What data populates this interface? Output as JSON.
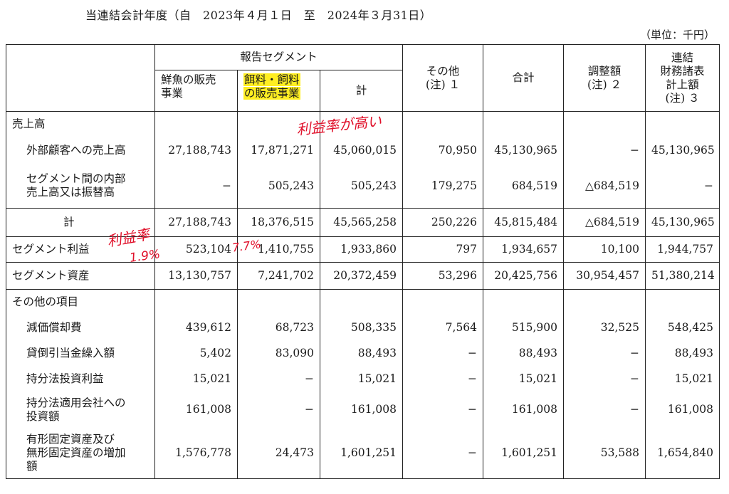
{
  "period": "当連結会計年度（自　2023年４月１日　至　2024年３月31日）",
  "unit": "（単位：千円）",
  "header": {
    "reporting_segment": "報告セグメント",
    "col_fish": [
      "鮮魚の販売",
      "事業"
    ],
    "col_feed": [
      "餌料・飼料",
      "の販売事業"
    ],
    "col_subtotal": "計",
    "col_other": [
      "その他",
      "(注) １"
    ],
    "col_total": "合計",
    "col_adjust": [
      "調整額",
      "(注) ２"
    ],
    "col_consol": [
      "連結",
      "財務諸表",
      "計上額",
      "(注) ３"
    ]
  },
  "rows": {
    "sales_heading": "売上高",
    "external": {
      "label": "外部顧客への売上高",
      "values": [
        "27,188,743",
        "17,871,271",
        "45,060,015",
        "70,950",
        "45,130,965",
        "−",
        "45,130,965"
      ]
    },
    "intersegment": {
      "label": [
        "セグメント間の内部",
        "売上高又は振替高"
      ],
      "values": [
        "−",
        "505,243",
        "505,243",
        "179,275",
        "684,519",
        "△684,519",
        "−"
      ]
    },
    "sales_total": {
      "label": "計",
      "values": [
        "27,188,743",
        "18,376,515",
        "45,565,258",
        "250,226",
        "45,815,484",
        "△684,519",
        "45,130,965"
      ]
    },
    "segment_profit": {
      "label": "セグメント利益",
      "values": [
        "523,104",
        "1,410,755",
        "1,933,860",
        "797",
        "1,934,657",
        "10,100",
        "1,944,757"
      ]
    },
    "segment_assets": {
      "label": "セグメント資産",
      "values": [
        "13,130,757",
        "7,241,702",
        "20,372,459",
        "53,296",
        "20,425,756",
        "30,954,457",
        "51,380,214"
      ]
    },
    "other_heading": "その他の項目",
    "depreciation": {
      "label": "減価償却費",
      "values": [
        "439,612",
        "68,723",
        "508,335",
        "7,564",
        "515,900",
        "32,525",
        "548,425"
      ]
    },
    "bad_debt": {
      "label": "貸倒引当金繰入額",
      "values": [
        "5,402",
        "83,090",
        "88,493",
        "−",
        "88,493",
        "−",
        "88,493"
      ]
    },
    "equity_income": {
      "label": "持分法投資利益",
      "values": [
        "15,021",
        "−",
        "15,021",
        "−",
        "15,021",
        "−",
        "15,021"
      ]
    },
    "equity_investment": {
      "label": [
        "持分法適用会社への",
        "投資額"
      ],
      "values": [
        "161,008",
        "−",
        "161,008",
        "−",
        "161,008",
        "−",
        "161,008"
      ]
    },
    "capex": {
      "label": [
        "有形固定資産及び",
        "無形固定資産の増加",
        "額"
      ],
      "values": [
        "1,576,778",
        "24,473",
        "1,601,251",
        "−",
        "1,601,251",
        "53,588",
        "1,654,840"
      ]
    }
  },
  "annotations": {
    "margin_high": "利益率が高い",
    "margin_label": "利益率",
    "pct_fish": "1.9%",
    "pct_feed": "7.7%",
    "ink_color": "#e0102a",
    "highlight_color": "#ffee22"
  }
}
